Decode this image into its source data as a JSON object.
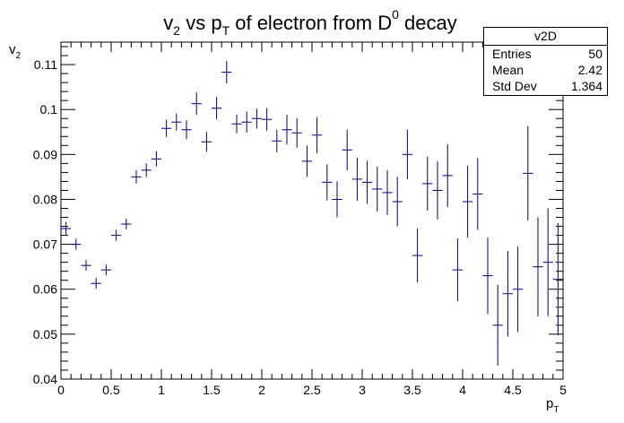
{
  "chart_data": {
    "type": "scatter",
    "title_parts": {
      "v": "v",
      "v_sub": "2",
      "mid": " vs p",
      "p_sub": "T",
      "rest": " of electron from D",
      "d_sup": "0",
      "end": " decay"
    },
    "xlabel": {
      "main": "p",
      "sub": "T"
    },
    "ylabel": {
      "main": "v",
      "sub": "2"
    },
    "xlim": [
      0,
      5
    ],
    "ylim": [
      0.04,
      0.115
    ],
    "x_ticks": [
      0,
      0.5,
      1,
      1.5,
      2,
      2.5,
      3,
      3.5,
      4,
      4.5,
      5
    ],
    "x_tick_labels": [
      "0",
      "0.5",
      "1",
      "1.5",
      "2",
      "2.5",
      "3",
      "3.5",
      "4",
      "4.5",
      "5"
    ],
    "y_ticks": [
      0.04,
      0.05,
      0.06,
      0.07,
      0.08,
      0.09,
      0.1,
      0.11
    ],
    "y_tick_labels": [
      "0.04",
      "0.05",
      "0.06",
      "0.07",
      "0.08",
      "0.09",
      "0.1",
      "0.11"
    ],
    "bin_width": 0.1,
    "series": [
      {
        "name": "v2D",
        "color": "#00007f",
        "x": [
          0.05,
          0.15,
          0.25,
          0.35,
          0.45,
          0.55,
          0.65,
          0.75,
          0.85,
          0.95,
          1.05,
          1.15,
          1.25,
          1.35,
          1.45,
          1.55,
          1.65,
          1.75,
          1.85,
          1.95,
          2.05,
          2.15,
          2.25,
          2.35,
          2.45,
          2.55,
          2.65,
          2.75,
          2.85,
          2.95,
          3.05,
          3.15,
          3.25,
          3.35,
          3.45,
          3.55,
          3.65,
          3.75,
          3.85,
          3.95,
          4.05,
          4.15,
          4.25,
          4.35,
          4.45,
          4.55,
          4.65,
          4.75,
          4.85,
          4.95
        ],
        "y": [
          0.0735,
          0.07,
          0.0653,
          0.0613,
          0.0643,
          0.072,
          0.0745,
          0.085,
          0.0865,
          0.089,
          0.0958,
          0.0972,
          0.0955,
          0.1013,
          0.0928,
          0.1003,
          0.1083,
          0.0968,
          0.0972,
          0.098,
          0.0978,
          0.093,
          0.0955,
          0.0948,
          0.0885,
          0.0943,
          0.0838,
          0.08,
          0.091,
          0.0845,
          0.0838,
          0.0823,
          0.0815,
          0.0795,
          0.09,
          0.0675,
          0.0835,
          0.082,
          0.0853,
          0.0643,
          0.0795,
          0.0812,
          0.063,
          0.052,
          0.059,
          0.06,
          0.0858,
          0.065,
          0.066,
          0.0622
        ],
        "yerr": [
          0.0015,
          0.0012,
          0.0012,
          0.0012,
          0.0012,
          0.0012,
          0.0012,
          0.0015,
          0.0015,
          0.0017,
          0.0019,
          0.0019,
          0.0021,
          0.0025,
          0.0022,
          0.0025,
          0.0025,
          0.0021,
          0.0023,
          0.0022,
          0.0025,
          0.0025,
          0.0033,
          0.0033,
          0.0035,
          0.004,
          0.004,
          0.004,
          0.0045,
          0.0048,
          0.0048,
          0.005,
          0.005,
          0.0055,
          0.0055,
          0.006,
          0.006,
          0.0065,
          0.007,
          0.007,
          0.008,
          0.008,
          0.0085,
          0.009,
          0.0095,
          0.0095,
          0.0105,
          0.011,
          0.012,
          0.0125
        ]
      }
    ],
    "stats": {
      "name": "v2D",
      "entries_label": "Entries",
      "entries": "50",
      "mean_label": "Mean",
      "mean": "2.42",
      "std_label": "Std Dev",
      "std": "1.364"
    }
  }
}
